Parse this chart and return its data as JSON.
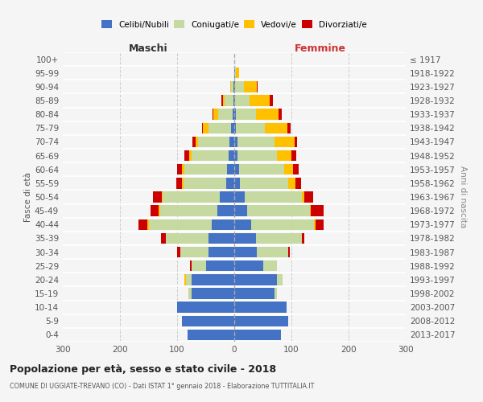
{
  "age_groups": [
    "0-4",
    "5-9",
    "10-14",
    "15-19",
    "20-24",
    "25-29",
    "30-34",
    "35-39",
    "40-44",
    "45-49",
    "50-54",
    "55-59",
    "60-64",
    "65-69",
    "70-74",
    "75-79",
    "80-84",
    "85-89",
    "90-94",
    "95-99",
    "100+"
  ],
  "birth_years": [
    "2013-2017",
    "2008-2012",
    "2003-2007",
    "1998-2002",
    "1993-1997",
    "1988-1992",
    "1983-1987",
    "1978-1982",
    "1973-1977",
    "1968-1972",
    "1963-1967",
    "1958-1962",
    "1953-1957",
    "1948-1952",
    "1943-1947",
    "1938-1942",
    "1933-1937",
    "1928-1932",
    "1923-1927",
    "1918-1922",
    "≤ 1917"
  ],
  "male_celibi": [
    82,
    92,
    100,
    75,
    75,
    50,
    45,
    45,
    40,
    30,
    25,
    14,
    12,
    10,
    8,
    5,
    3,
    2,
    1,
    0,
    0
  ],
  "male_coniugati": [
    0,
    0,
    0,
    5,
    10,
    25,
    50,
    75,
    110,
    100,
    100,
    75,
    75,
    65,
    55,
    40,
    25,
    15,
    4,
    0,
    0
  ],
  "male_vedovi": [
    0,
    0,
    0,
    0,
    2,
    0,
    0,
    0,
    2,
    2,
    2,
    2,
    5,
    4,
    5,
    10,
    8,
    3,
    2,
    0,
    0
  ],
  "male_divorziati": [
    0,
    0,
    0,
    0,
    0,
    2,
    5,
    8,
    15,
    15,
    15,
    10,
    8,
    8,
    5,
    2,
    2,
    2,
    0,
    0,
    0
  ],
  "female_nubili": [
    82,
    95,
    92,
    70,
    75,
    50,
    40,
    38,
    30,
    22,
    18,
    10,
    8,
    5,
    5,
    3,
    3,
    2,
    2,
    1,
    0
  ],
  "female_coniugate": [
    0,
    0,
    0,
    5,
    10,
    25,
    55,
    80,
    110,
    110,
    100,
    85,
    80,
    70,
    65,
    50,
    35,
    25,
    15,
    2,
    0
  ],
  "female_vedove": [
    0,
    0,
    0,
    0,
    0,
    0,
    0,
    0,
    2,
    2,
    5,
    12,
    15,
    25,
    35,
    40,
    40,
    35,
    22,
    5,
    0
  ],
  "female_divorziate": [
    0,
    0,
    0,
    0,
    0,
    0,
    2,
    5,
    15,
    22,
    15,
    10,
    10,
    8,
    5,
    5,
    5,
    5,
    2,
    0,
    0
  ],
  "colors": {
    "celibi": "#4472c4",
    "coniugati": "#c5d9a0",
    "vedovi": "#ffc000",
    "divorziati": "#cc0000"
  },
  "xlim": 300,
  "title": "Popolazione per età, sesso e stato civile - 2018",
  "subtitle": "COMUNE DI UGGIATE-TREVANO (CO) - Dati ISTAT 1° gennaio 2018 - Elaborazione TUTTITALIA.IT",
  "ylabel_left": "Fasce di età",
  "ylabel_right": "Anni di nascita",
  "xlabel_left": "Maschi",
  "xlabel_right": "Femmine",
  "bg_color": "#f5f5f5",
  "legend_labels": [
    "Celibi/Nubili",
    "Coniugati/e",
    "Vedovi/e",
    "Divorziati/e"
  ]
}
